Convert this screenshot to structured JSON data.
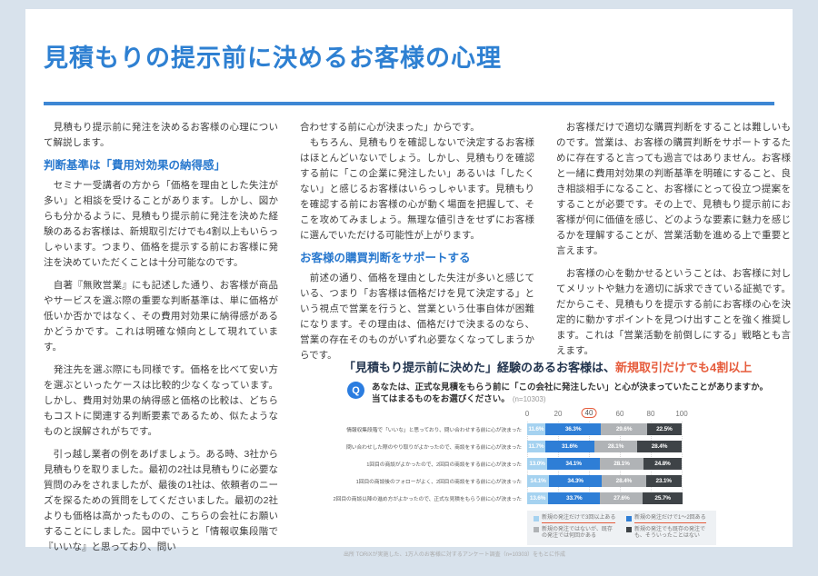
{
  "page": {
    "title": "見積もりの提示前に決めるお客様の心理"
  },
  "columns": {
    "col1": {
      "p1": "　見積もり提示前に発注を決めるお客様の心理について解説します。",
      "heading": "判断基準は「費用対効果の納得感」",
      "p2": "　セミナー受講者の方から「価格を理由とした失注が多い」と相談を受けることがあります。しかし、図からも分かるように、見積もり提示前に発注を決めた経験のあるお客様は、新規取引だけでも4割以上もいらっしゃいます。つまり、価格を提示する前にお客様に発注を決めていただくことは十分可能なのです。",
      "p3": "　自著『無敗営業』にも記述した通り、お客様が商品やサービスを選ぶ際の重要な判断基準は、単に価格が低いか否かではなく、その費用対効果に納得感があるかどうかです。これは明確な傾向として現れています。",
      "p4": "　発注先を選ぶ際にも同様です。価格を比べて安い方を選ぶといったケースは比較的少なくなっています。しかし、費用対効果の納得感と価格の比較は、どちらもコストに関連する判断要素であるため、似たようなものと誤解されがちです。",
      "p5": "　引っ越し業者の例をあげましょう。ある時、3社から見積もりを取りました。最初の2社は見積もりに必要な質問のみをされましたが、最後の1社は、依頼者のニーズを探るための質問をしてくださいました。最初の2社よりも価格は高かったものの、こちらの会社にお願いすることにしました。図中でいうと「情報収集段階で『いいな』と思っており、問い"
    },
    "col2": {
      "p1": "合わせする前に心が決まった」からです。",
      "p2": "　もちろん、見積もりを確認しないで決定するお客様はほとんどいないでしょう。しかし、見積もりを確認する前に「この企業に発注したい」あるいは「したくない」と感じるお客様はいらっしゃいます。見積もりを確認する前にお客様の心が動く場面を把握して、そこを攻めてみましょう。無理な値引きをせずにお客様に選んでいただける可能性が上がります。",
      "heading": "お客様の購買判断をサポートする",
      "p3": "　前述の通り、価格を理由とした失注が多いと感じている、つまり「お客様は価格だけを見て決定する」という視点で営業を行うと、営業という仕事自体が困難になります。その理由は、価格だけで決まるのなら、営業の存在そのものがいずれ必要なくなってしまうからです。"
    },
    "col3": {
      "p1": "　お客様だけで適切な購買判断をすることは難しいものです。営業は、お客様の購買判断をサポートするために存在すると言っても過言ではありません。お客様と一緒に費用対効果の判断基準を明確にすること、良き相談相手になること、お客様にとって役立つ提案をすることが必要です。その上で、見積もり提示前にお客様が何に価値を感じ、どのような要素に魅力を感じるかを理解することが、営業活動を進める上で重要と言えます。",
      "p2": "　お客様の心を動かせるということは、お客様に対してメリットや魅力を適切に訴求できている証拠です。だからこそ、見積もりを提示する前にお客様の心を決定的に動かすポイントを見つけ出すことを強く推奨します。これは「営業活動を前倒しにする」戦略とも言えます。"
    }
  },
  "chart_data": {
    "type": "bar",
    "orientation": "horizontal",
    "stacked": true,
    "title_main": "「見積もり提示前に決めた」経験のあるお客様は、",
    "title_highlight": "新規取引だけでも4割以上",
    "question_icon": "Q",
    "question_line1": "あなたは、正式な見積をもらう前に「この会社に発注したい」と心が決まっていたことがありますか。",
    "question_line2": "当てはまるものをお選びください。",
    "sample_note": "(n=10303)",
    "x_axis": {
      "ticks": [
        0,
        20,
        40,
        60,
        80,
        100
      ],
      "highlighted_tick": 40,
      "max": 100
    },
    "categories": [
      "情報収集段階で「いいな」と思っており、問い合わせする前に心が決まった",
      "問い合わせした際のやり取りがよかったので、商談をする前に心が決まった",
      "1回目の商談がよかったので、2回目の商談をする前に心が決まった",
      "1回目の商談後のフォローがよく、2回目の商談をする前に心が決まった",
      "2回目の商談以降の進め方がよかったので、正式な見積をもらう前に心が決まった"
    ],
    "series": [
      {
        "name": "新規の発注だけで3回以上ある",
        "color": "#a5d2f0",
        "underline": true,
        "values": [
          11.6,
          11.7,
          13.0,
          14.1,
          13.6
        ]
      },
      {
        "name": "新規の発注だけで1〜2回ある",
        "color": "#2e7ed6",
        "underline": true,
        "values": [
          36.3,
          31.6,
          34.1,
          34.3,
          33.7
        ]
      },
      {
        "name": "新規の発注ではないが、既存の発注では何回かある",
        "color": "#b0b3b6",
        "underline": false,
        "values": [
          29.6,
          28.1,
          28.1,
          28.4,
          27.6
        ]
      },
      {
        "name": "新規の発注でも既存の発注でも、そういったことはない",
        "color": "#3e4347",
        "underline": false,
        "values": [
          22.5,
          28.4,
          24.8,
          23.1,
          25.7
        ]
      }
    ],
    "legend_position": "bottom-right",
    "grid": true,
    "source_note": "出所 TORiXが実施した、1万人のお客様に対するアンケート調査（n=10303）をもとに作成"
  },
  "colors": {
    "accent_blue": "#2e80d2",
    "heading_blue": "#2878ce",
    "highlight_red": "#e65c3c",
    "page_background": "#d8e2ec"
  }
}
